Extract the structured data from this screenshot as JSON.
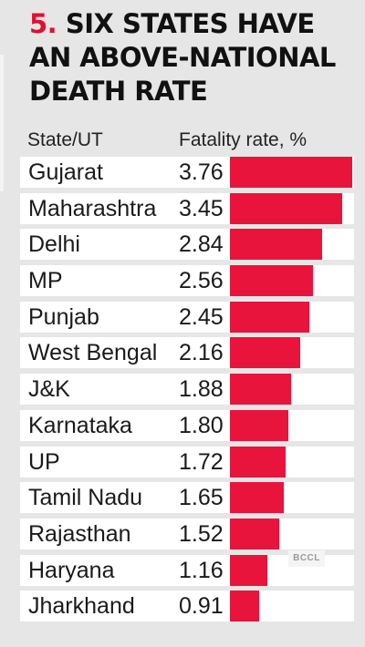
{
  "title": {
    "number": "5.",
    "text": "SIX STATES HAVE AN ABOVE-NATIONAL DEATH RATE"
  },
  "columns": {
    "state": "State/UT",
    "rate": "Fatality rate, %"
  },
  "watermark": "BCCL",
  "colors": {
    "bar": "#e8143c",
    "accent": "#e0102f",
    "row_bg": "#ffffff",
    "page_bg": "#e6e6e6"
  },
  "chart_data": {
    "type": "bar",
    "orientation": "horizontal",
    "title": "5. SIX STATES HAVE AN ABOVE-NATIONAL DEATH RATE",
    "xlabel": "Fatality rate, %",
    "ylabel": "State/UT",
    "categories": [
      "Gujarat",
      "Maharashtra",
      "Delhi",
      "MP",
      "Punjab",
      "West Bengal",
      "J&K",
      "Karnataka",
      "UP",
      "Tamil Nadu",
      "Rajasthan",
      "Haryana",
      "Jharkhand"
    ],
    "value_labels": [
      "3.76",
      "3.45",
      "2.84",
      "2.56",
      "2.45",
      "2.16",
      "1.88",
      "1.80",
      "1.72",
      "1.65",
      "1.52",
      "1.16",
      "0.91"
    ],
    "values": [
      3.76,
      3.45,
      2.84,
      2.56,
      2.45,
      2.16,
      1.88,
      1.8,
      1.72,
      1.65,
      1.52,
      1.16,
      0.91
    ],
    "xlim": [
      0,
      3.76
    ]
  }
}
